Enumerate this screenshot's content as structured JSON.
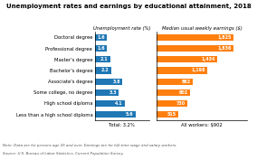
{
  "title": "Unemployment rates and earnings by educational attainment, 2018",
  "annotations": [
    "Note: Data are for persons age 25 and over. Earnings are for full-time wage and salary workers.",
    "Source: U.S. Bureau of Labor Statistics, Current Population Survey."
  ],
  "chart_data": [
    {
      "type": "bar",
      "orientation": "horizontal",
      "title": "Unemployment rate (%)",
      "xlabel": "Total: 3.2%",
      "categories": [
        "Doctoral degree",
        "Professional degree",
        "Master's degree",
        "Bachelor's degree",
        "Associate's degree",
        "Some college, no degree",
        "High school diploma",
        "Less than a high school diploma"
      ],
      "values": [
        1.6,
        1.6,
        2.1,
        2.2,
        3.8,
        3.3,
        4.1,
        5.6
      ],
      "xlim": [
        0,
        7.5
      ],
      "xticks": [],
      "data_labels": true,
      "tick_labels": "y"
    },
    {
      "type": "bar",
      "orientation": "horizontal",
      "title": "Median usual weekly earnings ($)",
      "xlabel": "All workers: $902",
      "categories": [
        "Doctoral degree",
        "Professional degree",
        "Master's degree",
        "Bachelor's degree",
        "Associate's degree",
        "Some college, no degree",
        "High school diploma",
        "Less than a high school diploma"
      ],
      "values": [
        1825,
        1836,
        1434,
        1198,
        862,
        802,
        730,
        515
      ],
      "value_labels": [
        "1,825",
        "1,836",
        "1,434",
        "1,198",
        "862",
        "802",
        "730",
        "515"
      ],
      "xlim": [
        0,
        2150
      ],
      "xticks": [],
      "data_labels": true,
      "tick_labels": false
    }
  ]
}
